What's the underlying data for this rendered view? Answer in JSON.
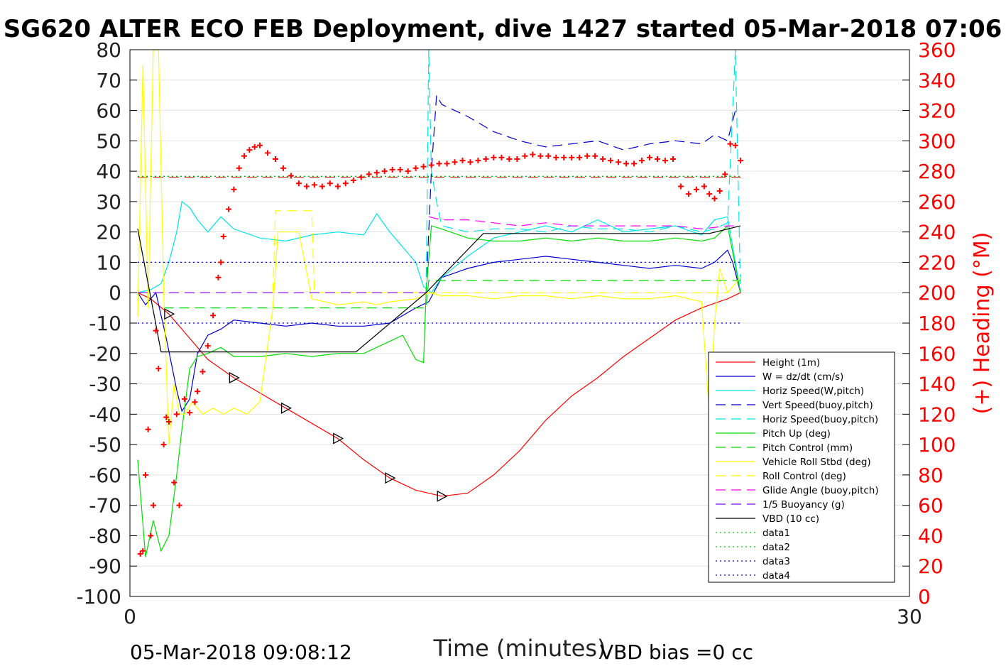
{
  "chart_data": {
    "type": "line",
    "title": "SG620 ALTER ECO FEB Deployment, dive 1427 started 05-Mar-2018 07:06",
    "xlabel": "Time (minutes)",
    "ylabel_right": "(+) Heading (°M)",
    "footer_left": "05-Mar-2018 09:08:12",
    "footer_right": "VBD bias =0 cc",
    "xlim": [
      0,
      30
    ],
    "ylim_left": [
      -100,
      80
    ],
    "ylim_right": [
      0,
      360
    ],
    "x_ticks": [
      "0",
      "30"
    ],
    "y_ticks_left": [
      "80",
      "70",
      "60",
      "50",
      "40",
      "30",
      "20",
      "10",
      "0",
      "-10",
      "-20",
      "-30",
      "-40",
      "-50",
      "-60",
      "-70",
      "-80",
      "-90",
      "-100"
    ],
    "y_ticks_right": [
      "360",
      "340",
      "320",
      "300",
      "280",
      "260",
      "240",
      "220",
      "200",
      "180",
      "160",
      "140",
      "120",
      "100",
      "80",
      "60",
      "40",
      "20",
      "0"
    ],
    "legend_position": "lower-right",
    "grid": true,
    "colors": {
      "height": "#ff0000",
      "w": "#0000cc",
      "horiz": "#00e5e5",
      "pitch": "#00dd00",
      "roll": "#ffff00",
      "glide": "#ff00ff",
      "vbd": "#000000",
      "heading": "#ff0000",
      "right_axis": "#ff0000"
    },
    "series": [
      {
        "name": "Height (1m)",
        "color": "#ff0000",
        "style": "solid",
        "x": [
          0.3,
          0.8,
          1.5,
          2.3,
          3.0,
          4.0,
          5.0,
          6.0,
          7.0,
          8.0,
          9.0,
          10.0,
          11.0,
          12.0,
          13.0,
          14.0,
          15.0,
          16.0,
          17.0,
          18.0,
          19.0,
          20.0,
          21.0,
          22.0,
          23.0,
          23.5
        ],
        "y": [
          0,
          -2,
          -7,
          -15,
          -22,
          -28,
          -33,
          -38,
          -43,
          -48,
          -55,
          -61,
          -65,
          -67,
          -66,
          -60,
          -52,
          -42,
          -34,
          -28,
          -21,
          -15,
          -9,
          -5,
          -2,
          0
        ]
      },
      {
        "name": "W = dz/dt (cm/s)",
        "color": "#0000cc",
        "style": "solid",
        "x": [
          0.3,
          0.6,
          1.0,
          1.4,
          1.8,
          2.0,
          2.3,
          2.6,
          3.0,
          3.5,
          4.0,
          5.0,
          6.0,
          7.0,
          8.0,
          9.0,
          10.0,
          11.0,
          11.5,
          12.0,
          13.0,
          14.0,
          15.0,
          16.0,
          17.0,
          18.0,
          19.0,
          20.0,
          21.0,
          22.0,
          22.5,
          23.0,
          23.2,
          23.5
        ],
        "y": [
          0,
          -4,
          0,
          -15,
          -32,
          -39,
          -35,
          -20,
          -14,
          -12,
          -9,
          -10,
          -11,
          -10,
          -11,
          -11,
          -10,
          -5,
          -3,
          5,
          8,
          10,
          11,
          12,
          11,
          10,
          9,
          8,
          9,
          8,
          10,
          14,
          10,
          0
        ]
      },
      {
        "name": "Horiz Speed(W,pitch)",
        "color": "#00e5e5",
        "style": "solid",
        "x": [
          0.3,
          0.8,
          1.2,
          1.5,
          1.8,
          2.0,
          2.3,
          2.6,
          3.0,
          3.5,
          4.0,
          5.0,
          6.0,
          7.0,
          8.0,
          9.0,
          9.5,
          10.0,
          11.0,
          11.3,
          11.6,
          12.0,
          13.0,
          14.0,
          15.0,
          16.0,
          17.0,
          18.0,
          19.0,
          20.0,
          21.0,
          22.0,
          22.5,
          23.0,
          23.5
        ],
        "y": [
          0,
          1,
          3,
          10,
          20,
          30,
          28,
          24,
          20,
          25,
          21,
          18,
          17,
          19,
          20,
          19,
          26,
          20,
          10,
          2,
          0,
          5,
          12,
          18,
          20,
          22,
          20,
          24,
          20,
          21,
          22,
          19,
          24,
          25,
          0
        ]
      },
      {
        "name": "Vert Speed(buoy,pitch)",
        "color": "#0000cc",
        "style": "dashed",
        "x": [
          11.4,
          11.6,
          11.8,
          12.0,
          13.0,
          14.0,
          15.0,
          16.0,
          17.0,
          18.0,
          19.0,
          20.0,
          21.0,
          22.0,
          22.5,
          23.0,
          23.3
        ],
        "y": [
          0,
          40,
          65,
          62,
          58,
          53,
          50,
          48,
          49,
          50,
          47,
          49,
          50,
          49,
          52,
          50,
          60
        ]
      },
      {
        "name": "Horiz Speed(buoy,pitch)",
        "color": "#00e5e5",
        "style": "dashed",
        "x": [
          11.4,
          11.5,
          11.6,
          11.8,
          12.0,
          13.0,
          14.0,
          15.0,
          16.0,
          17.0,
          18.0,
          19.0,
          20.0,
          21.0,
          22.0,
          22.5,
          23.0,
          23.3,
          23.5
        ],
        "y": [
          0,
          80,
          40,
          30,
          22,
          20,
          21,
          21,
          20,
          22,
          21,
          21,
          20,
          22,
          20,
          21,
          23,
          80,
          0
        ]
      },
      {
        "name": "Pitch Up (deg)",
        "color": "#00dd00",
        "style": "solid",
        "x": [
          0.3,
          0.6,
          0.9,
          1.2,
          1.5,
          1.8,
          2.0,
          2.3,
          2.6,
          3.0,
          3.5,
          4.0,
          5.0,
          6.0,
          7.0,
          8.0,
          9.0,
          10.0,
          10.5,
          11.0,
          11.3,
          11.4,
          11.6,
          12.0,
          13.0,
          14.0,
          15.0,
          16.0,
          17.0,
          18.0,
          19.0,
          20.0,
          21.0,
          22.0,
          22.5,
          23.0,
          23.5
        ],
        "y": [
          -55,
          -87,
          -75,
          -85,
          -80,
          -60,
          -45,
          -25,
          -21,
          -20,
          -18,
          -21,
          -21,
          -20,
          -21,
          -20,
          -20,
          -16,
          -14,
          -22,
          -23,
          0,
          22,
          21,
          18,
          17,
          17,
          18,
          17,
          18,
          17,
          17,
          18,
          17,
          18,
          22,
          0
        ]
      },
      {
        "name": "Pitch Control (mm)",
        "color": "#00dd00",
        "style": "dashed",
        "x": [
          1.3,
          3.0,
          6.0,
          9.0,
          11.4,
          11.5,
          15.0,
          20.0,
          23.5
        ],
        "y": [
          -5,
          -5,
          -5,
          -5,
          -5,
          4,
          4,
          4,
          4
        ]
      },
      {
        "name": "Vehicle Roll Stbd (deg)",
        "color": "#ffff00",
        "style": "solid",
        "x": [
          0.3,
          0.5,
          0.7,
          0.9,
          1.1,
          1.3,
          1.5,
          1.7,
          1.9,
          2.1,
          2.4,
          2.8,
          3.2,
          3.6,
          4.0,
          4.5,
          5.0,
          5.5,
          5.7,
          6.0,
          6.5,
          7.0,
          8.0,
          9.0,
          9.5,
          10.0,
          11.0,
          11.5,
          12.0,
          13.0,
          14.0,
          15.0,
          16.0,
          17.0,
          18.0,
          19.0,
          20.0,
          21.0,
          22.0,
          22.3,
          22.5,
          22.7,
          23.0,
          23.5
        ],
        "y": [
          -8,
          75,
          -5,
          80,
          80,
          0,
          -50,
          -30,
          -40,
          -40,
          -36,
          -40,
          -38,
          -40,
          -38,
          -40,
          -36,
          -5,
          20,
          20,
          20,
          -2,
          -4,
          -3,
          -4,
          -3,
          -2,
          0,
          -1,
          -1,
          -2,
          -1,
          -1,
          -2,
          -1,
          -2,
          -2,
          -1,
          -3,
          -40,
          -10,
          8,
          0,
          5
        ]
      },
      {
        "name": "Roll Control (deg)",
        "color": "#ffff00",
        "style": "dashed",
        "x": [
          5.5,
          5.6,
          7.0,
          7.1,
          23.0
        ],
        "y": [
          0,
          27,
          27,
          0,
          0
        ]
      },
      {
        "name": "Glide Angle (buoy,pitch)",
        "color": "#ff00ff",
        "style": "dashed",
        "x": [
          11.5,
          12.0,
          13.0,
          14.0,
          15.0,
          16.0,
          17.0,
          18.0,
          19.0,
          20.0,
          21.0,
          22.0,
          23.0,
          23.3
        ],
        "y": [
          25,
          24,
          24,
          23,
          22,
          23,
          22,
          22,
          22,
          22,
          22,
          21,
          22,
          22
        ]
      },
      {
        "name": "1/5 Buoyancy (g)",
        "color": "#8800ff",
        "style": "dashed",
        "x": [
          0.3,
          11.4
        ],
        "y": [
          0,
          0
        ]
      },
      {
        "name": "VBD (10 cc)",
        "color": "#000000",
        "style": "solid",
        "x": [
          0.3,
          1.2,
          8.7,
          11.4,
          13.6,
          22.3,
          23.5
        ],
        "y": [
          21,
          -19.5,
          -19.5,
          0,
          19.5,
          19.5,
          22
        ]
      },
      {
        "name": "data1",
        "color": "#00bb00",
        "style": "dotted",
        "x": [
          0.3,
          23.5
        ],
        "y": [
          38.3,
          38.3
        ]
      },
      {
        "name": "data2",
        "color": "#00bb00",
        "style": "dotted",
        "x": [
          0.3,
          23.5
        ],
        "y": [
          38.3,
          38.3
        ]
      },
      {
        "name": "data3",
        "color": "#0000cc",
        "style": "dotted",
        "x": [
          0.3,
          23.5
        ],
        "y": [
          10,
          10
        ]
      },
      {
        "name": "data4",
        "color": "#0000cc",
        "style": "dotted",
        "x": [
          0.3,
          23.5
        ],
        "y": [
          -10,
          -10
        ]
      }
    ],
    "heading_ref": {
      "color": "#cc0000",
      "style": "dashed",
      "y_right": 276
    },
    "heading": {
      "color": "#ff0000",
      "marker": "+",
      "x": [
        0.4,
        0.5,
        0.6,
        0.7,
        0.8,
        0.9,
        1.0,
        1.1,
        1.3,
        1.4,
        1.5,
        1.7,
        1.8,
        1.9,
        2.1,
        2.3,
        2.5,
        2.6,
        2.8,
        3.0,
        3.2,
        3.4,
        3.5,
        3.6,
        3.8,
        4.0,
        4.2,
        4.4,
        4.6,
        4.8,
        5.0,
        5.3,
        5.6,
        5.9,
        6.2,
        6.5,
        6.8,
        7.1,
        7.4,
        7.7,
        8.0,
        8.3,
        8.6,
        8.9,
        9.2,
        9.5,
        9.8,
        10.1,
        10.4,
        10.7,
        11.0,
        11.3,
        11.6,
        11.9,
        12.2,
        12.5,
        12.8,
        13.1,
        13.4,
        13.7,
        14.0,
        14.3,
        14.6,
        14.9,
        15.2,
        15.5,
        15.8,
        16.1,
        16.4,
        16.7,
        17.0,
        17.3,
        17.6,
        17.9,
        18.2,
        18.5,
        18.8,
        19.1,
        19.4,
        19.7,
        20.0,
        20.3,
        20.6,
        20.9,
        21.2,
        21.5,
        21.8,
        22.1,
        22.3,
        22.5,
        22.7,
        22.9,
        23.1,
        23.3,
        23.5
      ],
      "y": [
        28,
        30,
        80,
        110,
        40,
        60,
        175,
        150,
        100,
        118,
        115,
        75,
        120,
        60,
        130,
        121,
        128,
        135,
        148,
        165,
        185,
        210,
        220,
        237,
        255,
        268,
        282,
        290,
        294,
        296,
        297,
        292,
        288,
        282,
        277,
        272,
        270,
        271,
        270,
        272,
        270,
        272,
        274,
        276,
        278,
        279,
        280,
        281,
        281,
        280,
        282,
        283,
        284,
        285,
        285,
        286,
        287,
        286,
        287,
        288,
        289,
        289,
        288,
        288,
        290,
        291,
        290,
        290,
        289,
        289,
        289,
        289,
        290,
        290,
        288,
        287,
        286,
        285,
        285,
        287,
        289,
        288,
        287,
        288,
        270,
        265,
        268,
        270,
        265,
        262,
        267,
        278,
        298,
        297,
        287
      ]
    }
  }
}
